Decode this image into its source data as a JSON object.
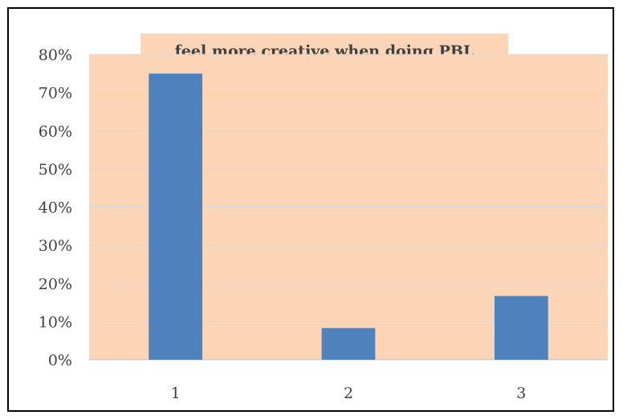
{
  "chart_data": {
    "type": "bar",
    "title": "feel more creative when doing PBL",
    "categories": [
      "1",
      "2",
      "3"
    ],
    "values": [
      0.75,
      0.083,
      0.167
    ],
    "yticks": [
      "0%",
      "10%",
      "20%",
      "30%",
      "40%",
      "50%",
      "60%",
      "70%",
      "80%"
    ],
    "ylim": [
      0,
      0.8
    ],
    "ystep": 0.1,
    "xlabel": "",
    "ylabel": "",
    "grid": true,
    "legend": "none",
    "colors": {
      "bar": "#4f81bd",
      "plot_background": "#fbd5b5",
      "title_background": "#fbd5b5",
      "gridline": "#d9d9d9",
      "text": "#404040"
    }
  }
}
